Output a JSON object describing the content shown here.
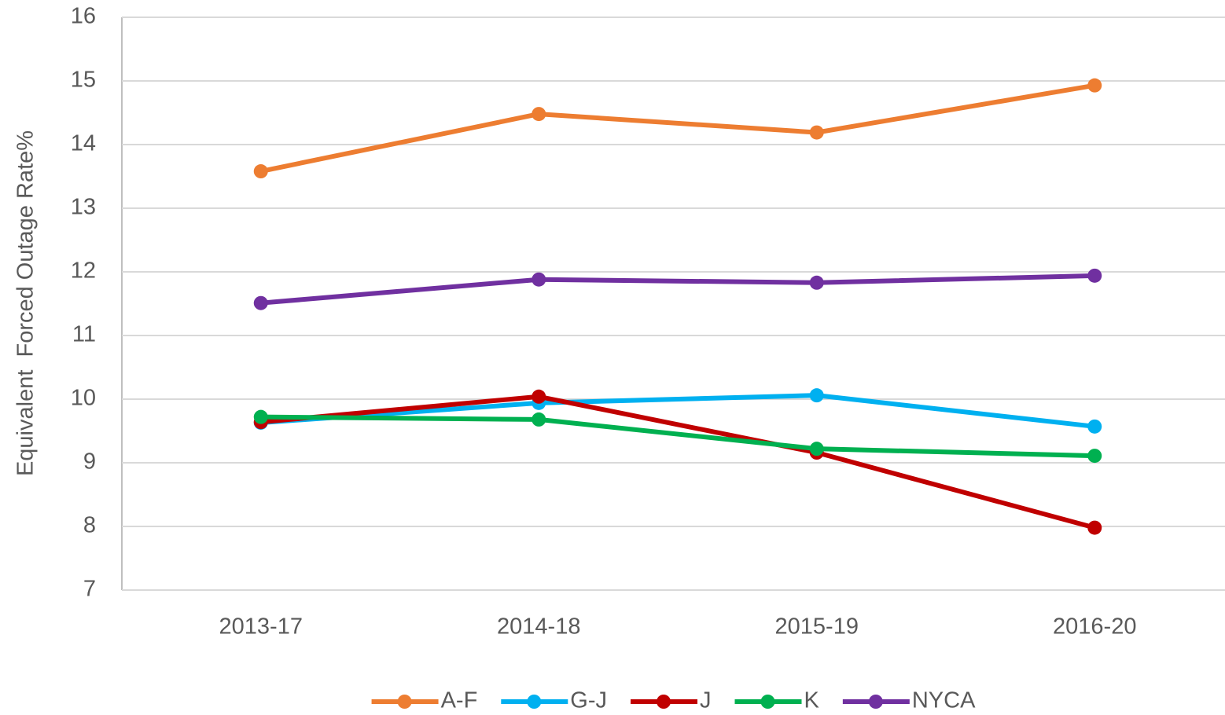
{
  "chart_data": {
    "type": "line",
    "y_label": "Equivalent  Forced Outage Rate%",
    "categories": [
      "2013-17",
      "2014-18",
      "2015-19",
      "2016-20"
    ],
    "series": [
      {
        "name": "A-F",
        "color": "#ed7d31",
        "values": [
          13.58,
          14.48,
          14.19,
          14.93
        ]
      },
      {
        "name": "G-J",
        "color": "#00b0f0",
        "values": [
          9.63,
          9.94,
          10.06,
          9.57
        ]
      },
      {
        "name": "J",
        "color": "#c00000",
        "values": [
          9.64,
          10.04,
          9.16,
          7.98
        ]
      },
      {
        "name": "K",
        "color": "#00b050",
        "values": [
          9.72,
          9.68,
          9.22,
          9.11
        ]
      },
      {
        "name": "NYCA",
        "color": "#7030a0",
        "values": [
          11.51,
          11.88,
          11.83,
          11.94
        ]
      }
    ],
    "ylim": [
      7,
      16
    ],
    "yticks": [
      7,
      8,
      9,
      10,
      11,
      12,
      13,
      14,
      15,
      16
    ],
    "grid": true,
    "legend": "bottom"
  }
}
